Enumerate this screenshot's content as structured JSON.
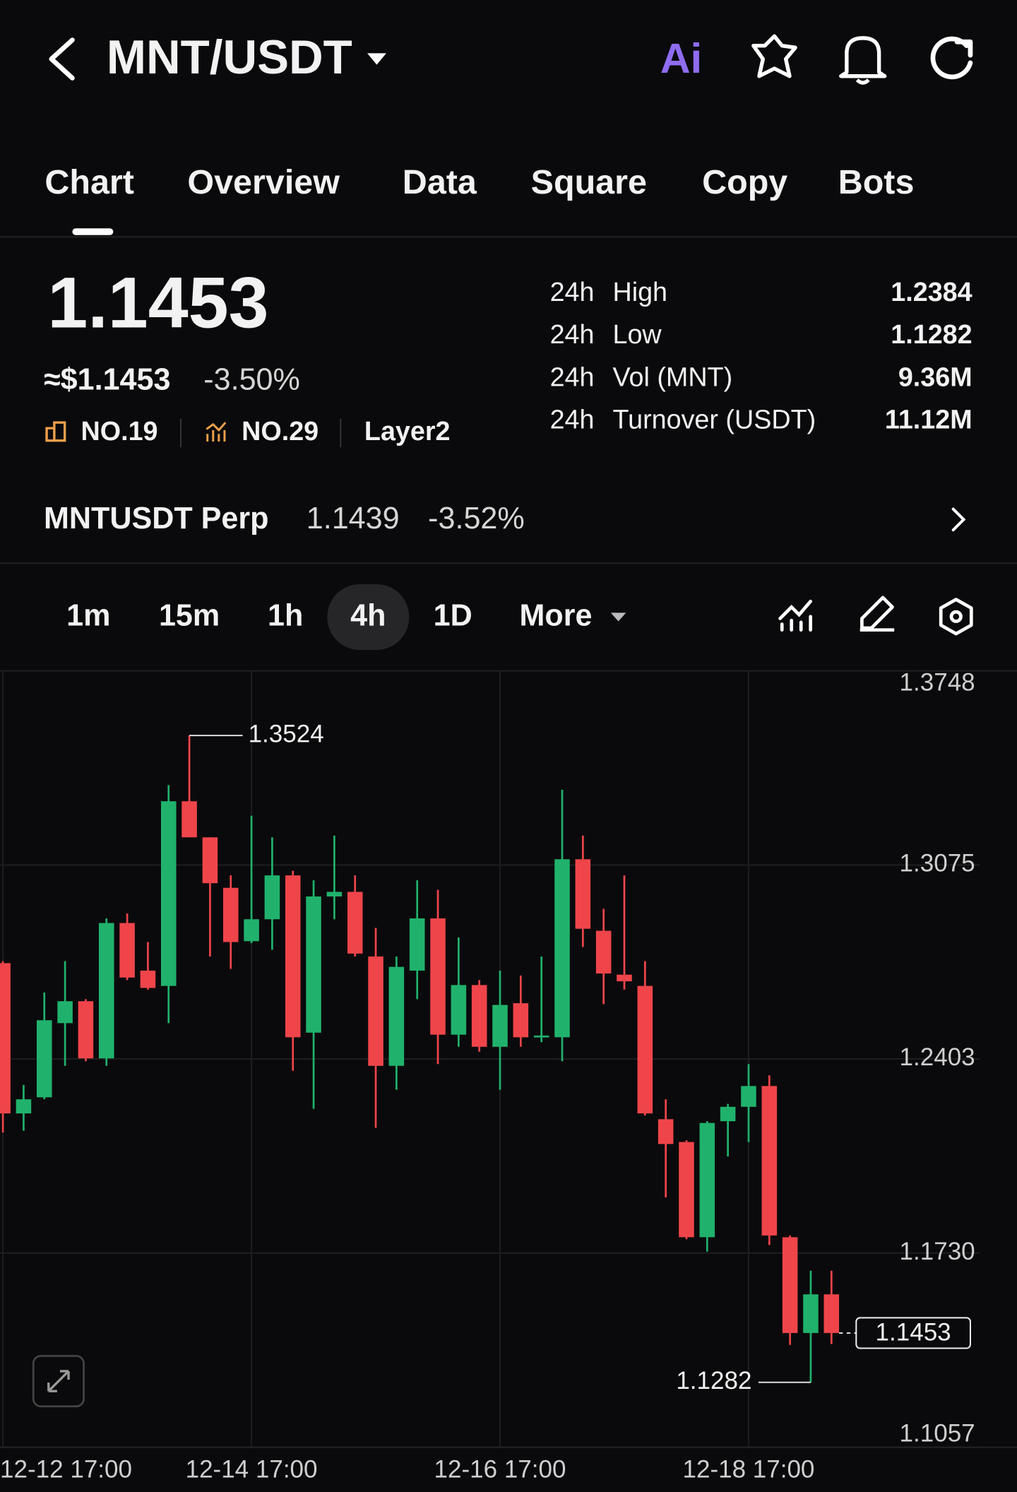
{
  "header": {
    "pair": "MNT/USDT",
    "ai": "Ai"
  },
  "tabs": [
    "Chart",
    "Overview",
    "Data",
    "Square",
    "Copy",
    "Bots"
  ],
  "summary": {
    "price": "1.1453",
    "usd_price": "≈$1.1453",
    "change": "-3.50%",
    "rank_1": "NO.19",
    "rank_2": "NO.29",
    "tag": "Layer2"
  },
  "stats": [
    {
      "period": "24h",
      "label": "High",
      "value": "1.2384"
    },
    {
      "period": "24h",
      "label": "Low",
      "value": "1.1282"
    },
    {
      "period": "24h",
      "label": "Vol (MNT)",
      "value": "9.36M"
    },
    {
      "period": "24h",
      "label": "Turnover (USDT)",
      "value": "11.12M"
    }
  ],
  "perp": {
    "name": "MNTUSDT Perp",
    "price": "1.1439",
    "change": "-3.52%"
  },
  "intervals": [
    "1m",
    "15m",
    "1h",
    "4h",
    "1D",
    "More"
  ],
  "chart_data": {
    "type": "candlestick",
    "categories": [
      "12-12 17:00",
      null,
      null,
      null,
      null,
      null,
      null,
      null,
      null,
      null,
      null,
      null,
      "12-14 17:00",
      null,
      null,
      null,
      null,
      null,
      null,
      null,
      null,
      null,
      null,
      null,
      "12-16 17:00",
      null,
      null,
      null,
      null,
      null,
      null,
      null,
      null,
      null,
      null,
      null,
      "12-18 17:00",
      null,
      null,
      null,
      null
    ],
    "open": [
      1.2735,
      1.2214,
      1.227,
      1.2527,
      1.2603,
      1.2405,
      1.2874,
      1.2709,
      1.2656,
      1.3296,
      1.3171,
      1.2996,
      1.2811,
      1.2887,
      1.3039,
      1.2494,
      1.2966,
      1.2982,
      1.2758,
      1.2379,
      1.2709,
      1.289,
      1.2487,
      1.2659,
      1.2445,
      1.2596,
      1.2478,
      1.2478,
      1.3095,
      1.2847,
      1.2695,
      1.2656,
      1.2194,
      1.2115,
      1.1785,
      1.2187,
      1.2237,
      1.2309,
      1.1785,
      1.1453,
      1.1587
    ],
    "high": [
      1.2742,
      1.2313,
      1.2633,
      1.2742,
      1.261,
      1.289,
      1.2907,
      1.2808,
      1.3352,
      1.3524,
      1.3171,
      1.3039,
      1.3246,
      1.3171,
      1.3055,
      1.3022,
      1.3177,
      1.3039,
      1.2857,
      1.2758,
      1.3022,
      1.2989,
      1.2824,
      1.2676,
      1.2709,
      1.2692,
      1.2758,
      1.3336,
      1.3177,
      1.2923,
      1.3039,
      1.2742,
      1.2263,
      1.2121,
      1.2187,
      1.2247,
      1.2385,
      1.2346,
      1.1791,
      1.1669,
      1.1669
    ],
    "low": [
      1.2148,
      1.2154,
      1.2263,
      1.2379,
      1.2395,
      1.2379,
      1.2676,
      1.2643,
      1.2527,
      1.3171,
      1.2758,
      1.2715,
      1.2804,
      1.2781,
      1.2362,
      1.223,
      1.2887,
      1.2758,
      1.2164,
      1.2296,
      1.261,
      1.2385,
      1.2445,
      1.2428,
      1.2296,
      1.2445,
      1.2461,
      1.2395,
      1.2791,
      1.2593,
      1.2643,
      1.2207,
      1.1923,
      1.1778,
      1.1735,
      1.2065,
      1.2115,
      1.1758,
      1.1412,
      1.1282,
      1.1415
    ],
    "close": [
      1.2214,
      1.2263,
      1.2537,
      1.2603,
      1.2405,
      1.2874,
      1.2685,
      1.2649,
      1.3296,
      1.3171,
      1.3012,
      1.2808,
      1.2887,
      1.3039,
      1.2478,
      1.2966,
      1.2982,
      1.2768,
      1.2379,
      1.2722,
      1.289,
      1.2487,
      1.2659,
      1.2445,
      1.259,
      1.2478,
      1.2484,
      1.3095,
      1.2854,
      1.2699,
      1.2672,
      1.2214,
      1.2108,
      1.1785,
      1.2181,
      1.2237,
      1.2309,
      1.1791,
      1.1453,
      1.1587,
      1.1453
    ],
    "up_color": "#20b26c",
    "down_color": "#ef454a",
    "ylim": [
      1.1057,
      1.3748
    ],
    "yticks": [
      1.1057,
      {
        "value": 1.173,
        "label": "1.1730"
      },
      1.2403,
      1.3075,
      1.3748
    ],
    "grid": true
  }
}
